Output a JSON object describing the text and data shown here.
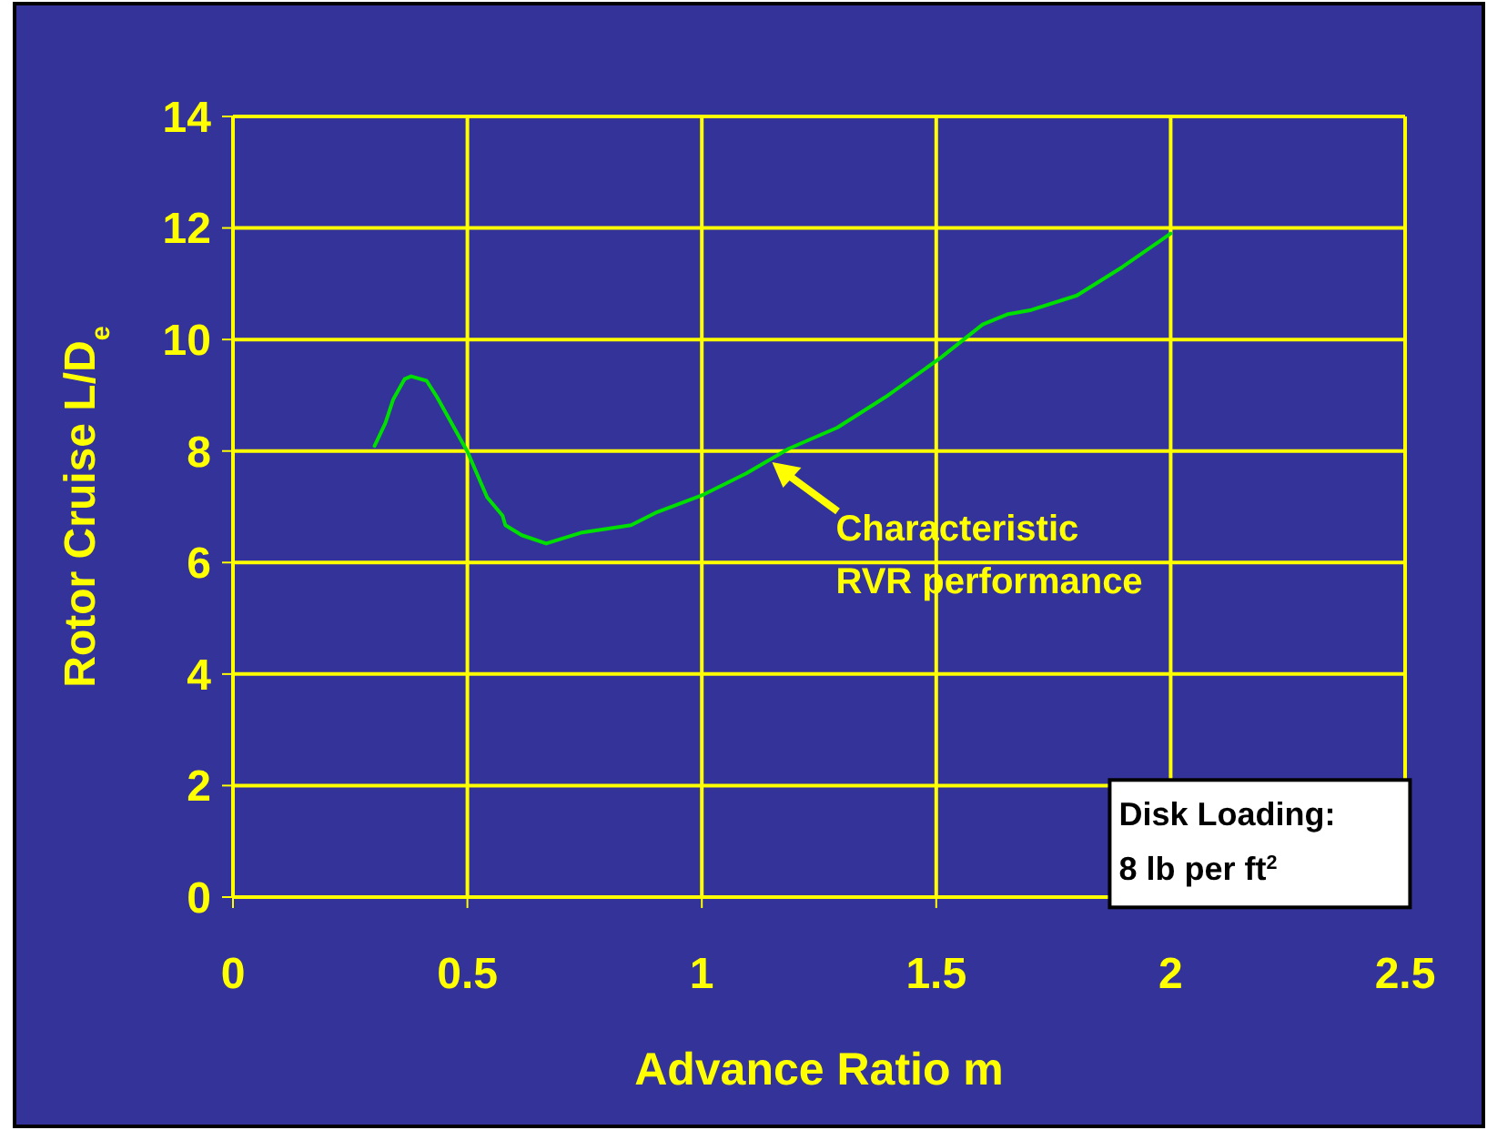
{
  "chart_data": {
    "type": "line",
    "xlabel": "Advance Ratio m",
    "ylabel": "Rotor Cruise L/D$_{e}$",
    "xlim": [
      0,
      2.5
    ],
    "xticks": [
      0,
      0.5,
      1,
      1.5,
      2,
      2.5
    ],
    "ylim": [
      0,
      14
    ],
    "yticks": [
      0,
      2,
      4,
      6,
      8,
      10,
      12,
      14
    ],
    "grid": true,
    "marker": "none",
    "line_style": "solid",
    "series": [
      {
        "color": "#00e000",
        "x": [
          0.302,
          0.325,
          0.342,
          0.366,
          0.38,
          0.413,
          0.435,
          0.5,
          0.542,
          0.575,
          0.581,
          0.616,
          0.668,
          0.745,
          0.849,
          0.901,
          1.004,
          1.095,
          1.185,
          1.289,
          1.392,
          1.509,
          1.599,
          1.651,
          1.703,
          1.8,
          1.897,
          2.0
        ],
        "values": [
          8.09,
          8.5,
          8.93,
          9.29,
          9.34,
          9.26,
          8.97,
          7.99,
          7.17,
          6.84,
          6.67,
          6.49,
          6.34,
          6.54,
          6.67,
          6.89,
          7.22,
          7.6,
          8.04,
          8.42,
          8.97,
          9.67,
          10.27,
          10.45,
          10.53,
          10.79,
          11.3,
          11.9
        ]
      }
    ],
    "annotations": [
      {
        "text": "Characteristic\nRVR performance",
        "x": 1.15,
        "y": 7.8
      },
      "Disk Loading:\n8 lb per ft$^{2}$"
    ]
  }
}
